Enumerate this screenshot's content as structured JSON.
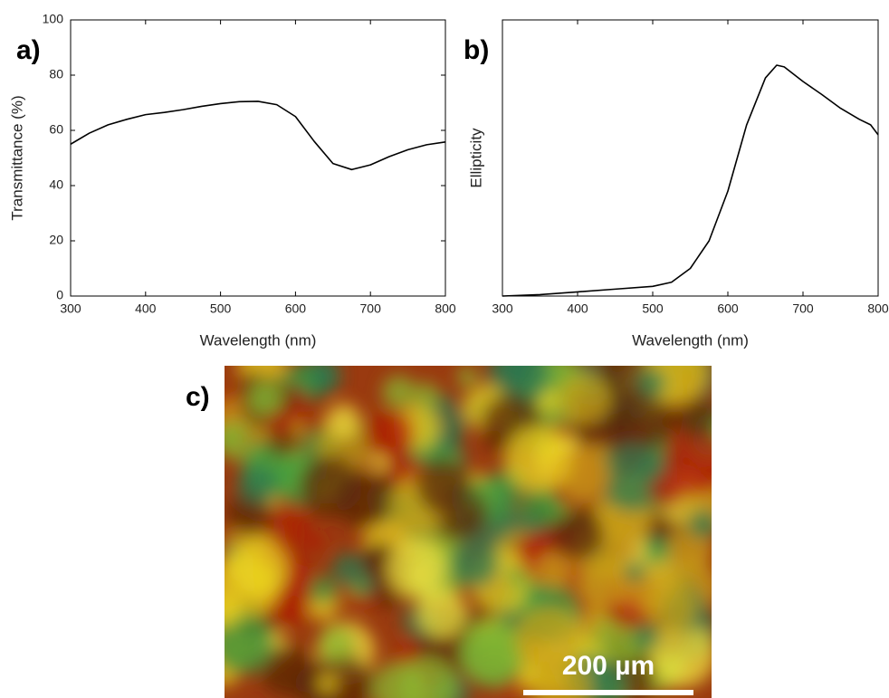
{
  "chart_data": [
    {
      "type": "line",
      "panel_label": "a)",
      "x_label": "Wavelength (nm)",
      "y_label": "Transmittance (%)",
      "x": [
        300,
        325,
        350,
        375,
        400,
        425,
        450,
        475,
        500,
        525,
        550,
        575,
        600,
        625,
        650,
        675,
        700,
        725,
        750,
        775,
        800
      ],
      "series": [
        {
          "color": "#000000",
          "values": [
            55,
            59,
            62,
            64,
            65.7,
            66.5,
            67.5,
            68.7,
            69.7,
            70.4,
            70.5,
            69.3,
            65,
            56,
            48,
            45.8,
            47.5,
            50.5,
            53,
            54.8,
            55.8
          ]
        }
      ],
      "xlim": [
        300,
        800
      ],
      "xticks": [
        300,
        400,
        500,
        600,
        700,
        800
      ],
      "ylim": [
        0,
        100
      ],
      "yticks": [
        0,
        20,
        40,
        60,
        80,
        100
      ]
    },
    {
      "type": "line",
      "panel_label": "b)",
      "x_label": "Wavelength (nm)",
      "y_label": "Ellipticity",
      "x": [
        300,
        350,
        400,
        450,
        500,
        525,
        550,
        575,
        600,
        625,
        650,
        665,
        675,
        700,
        725,
        750,
        775,
        790,
        800
      ],
      "series": [
        {
          "color": "#000000",
          "values": [
            0,
            0.005,
            0.015,
            0.025,
            0.035,
            0.05,
            0.1,
            0.2,
            0.38,
            0.62,
            0.79,
            0.836,
            0.83,
            0.777,
            0.73,
            0.68,
            0.64,
            0.62,
            0.584
          ]
        }
      ],
      "xlim": [
        300,
        800
      ],
      "xticks": [
        300,
        400,
        500,
        600,
        700,
        800
      ],
      "ylim": [
        0,
        1
      ]
    }
  ],
  "image_panel": {
    "panel_label": "c)",
    "scale_bar": "200 µm"
  }
}
